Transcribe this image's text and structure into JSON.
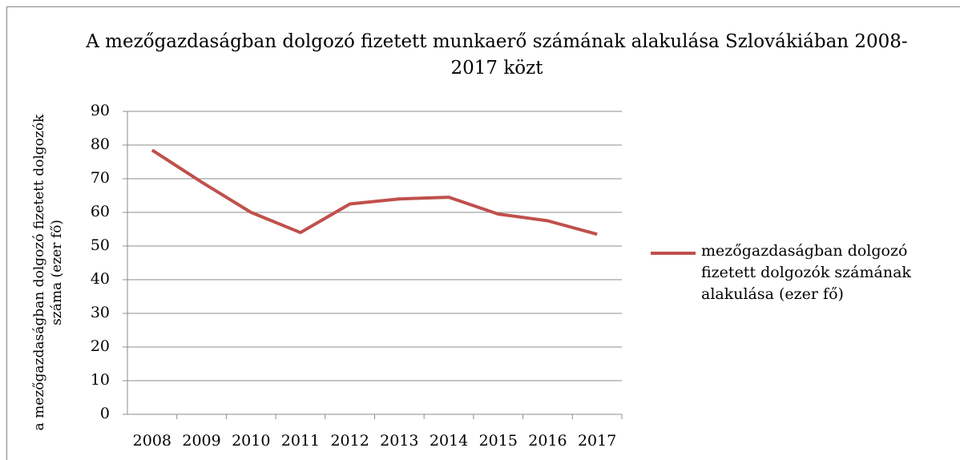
{
  "chart_data": {
    "type": "line",
    "title": "A mezőgazdaságban dolgozó fizetett munkaerő számának alakulása Szlovákiában 2008-2017 közt",
    "y_label": "a mezőgazdaságban dolgozó fizetett dolgozók száma (ezer fő)",
    "categories": [
      "2008",
      "2009",
      "2010",
      "2011",
      "2012",
      "2013",
      "2014",
      "2015",
      "2016",
      "2017"
    ],
    "series": [
      {
        "name": "mezőgazdaságban dolgozó fizetett dolgozók számának alakulása (ezer fő)",
        "color": "#c0504d",
        "values": [
          78.5,
          69,
          60,
          54,
          62.5,
          64,
          64.5,
          59.5,
          57.5,
          53.5
        ]
      }
    ],
    "ylim": [
      0,
      90
    ],
    "yticks": [
      0,
      10,
      20,
      30,
      40,
      50,
      60,
      70,
      80,
      90
    ],
    "grid": true,
    "legend": "right"
  }
}
